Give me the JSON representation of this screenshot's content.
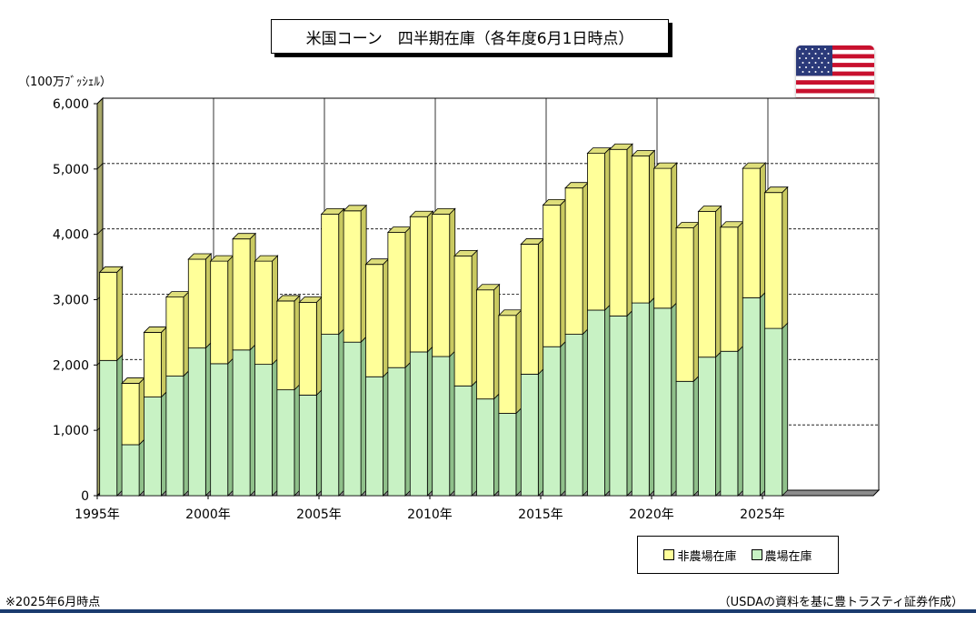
{
  "header": {
    "title": "米国コーン　四半期在庫（各年度6月1日時点）",
    "unit": "（100万ﾌﾞｯｼｪﾙ）"
  },
  "footer": {
    "note": "※2025年6月時点",
    "source": "（USDAの資料を基に豊トラスティ証券作成）"
  },
  "flag": {
    "icon": "us-flag-icon"
  },
  "chart_data": {
    "type": "bar",
    "stacked": true,
    "x": [
      1995,
      1996,
      1997,
      1998,
      1999,
      2000,
      2001,
      2002,
      2003,
      2004,
      2005,
      2006,
      2007,
      2008,
      2009,
      2010,
      2011,
      2012,
      2013,
      2014,
      2015,
      2016,
      2017,
      2018,
      2019,
      2020,
      2021,
      2022,
      2023,
      2024,
      2025
    ],
    "x_tick_labels": [
      {
        "year": 1995,
        "label": "1995年"
      },
      {
        "year": 2000,
        "label": "2000年"
      },
      {
        "year": 2005,
        "label": "2005年"
      },
      {
        "year": 2010,
        "label": "2010年"
      },
      {
        "year": 2015,
        "label": "2015年"
      },
      {
        "year": 2020,
        "label": "2020年"
      },
      {
        "year": 2025,
        "label": "2025年"
      }
    ],
    "x_range": [
      1995,
      2030
    ],
    "series": [
      {
        "name": "農場在庫",
        "color": "#c8f2c4",
        "values": [
          2070,
          780,
          1510,
          1830,
          2260,
          2020,
          2230,
          2010,
          1620,
          1540,
          2470,
          2350,
          1820,
          1960,
          2200,
          2130,
          1680,
          1480,
          1260,
          1860,
          2280,
          2470,
          2840,
          2750,
          2950,
          2870,
          1750,
          2120,
          2210,
          3030,
          2560
        ]
      },
      {
        "name": "非農場在庫",
        "color": "#ffff99",
        "values": [
          1350,
          940,
          990,
          1210,
          1360,
          1570,
          1700,
          1580,
          1360,
          1420,
          1840,
          2010,
          1720,
          2070,
          2070,
          2180,
          1990,
          1670,
          1500,
          1990,
          2170,
          2240,
          2400,
          2550,
          2250,
          2140,
          2350,
          2230,
          1900,
          1980,
          2080
        ]
      }
    ],
    "ylim": [
      0,
      6000
    ],
    "y_ticks": [
      {
        "value": 0,
        "label": "0"
      },
      {
        "value": 1000,
        "label": "1,000"
      },
      {
        "value": 2000,
        "label": "2,000"
      },
      {
        "value": 3000,
        "label": "3,000"
      },
      {
        "value": 4000,
        "label": "4,000"
      },
      {
        "value": 5000,
        "label": "5,000"
      },
      {
        "value": 6000,
        "label": "6,000"
      }
    ],
    "legend": "bottom-right",
    "grid": true
  }
}
